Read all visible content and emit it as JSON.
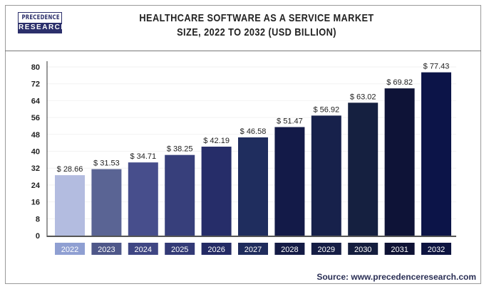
{
  "brand": {
    "line1": "PRECEDENCE",
    "line2": "RESEARCH"
  },
  "source": "Source: www.precedenceresearch.com",
  "chart_data": {
    "type": "bar",
    "title": "HEALTHCARE SOFTWARE AS A SERVICE MARKET SIZE, 2022 TO 2032 (USD BILLION)",
    "title_lines": [
      "HEALTHCARE SOFTWARE AS A SERVICE MARKET",
      "SIZE, 2022 TO 2032 (USD BILLION)"
    ],
    "categories": [
      "2022",
      "2023",
      "2024",
      "2025",
      "2026",
      "2027",
      "2028",
      "2029",
      "2030",
      "2031",
      "2032"
    ],
    "values": [
      28.66,
      31.53,
      34.71,
      38.25,
      42.19,
      46.58,
      51.47,
      56.92,
      63.02,
      69.82,
      77.43
    ],
    "data_labels": [
      "$ 28.66",
      "$ 31.53",
      "$ 34.71",
      "$ 38.25",
      "$ 42.19",
      "$ 46.58",
      "$ 51.47",
      "$ 56.92",
      "$ 63.02",
      "$ 69.82",
      "$ 77.43"
    ],
    "bar_colors": [
      "#b3bce0",
      "#5a6494",
      "#474e8c",
      "#373f7b",
      "#262d69",
      "#1f2d5e",
      "#131a48",
      "#17214b",
      "#152040",
      "#0e1337",
      "#0c1448"
    ],
    "label_box_colors": [
      "#8f9fd2",
      "#4e5789",
      "#3f4683",
      "#333a76",
      "#232a64",
      "#1f2c5c",
      "#141b45",
      "#151d44",
      "#141d3d",
      "#0e1234",
      "#0d1440"
    ],
    "xlabel": "",
    "ylabel": "",
    "ylim": [
      0,
      80
    ],
    "yticks": [
      0,
      8,
      16,
      24,
      32,
      40,
      48,
      56,
      64,
      72,
      80
    ],
    "grid": false,
    "legend": "none"
  }
}
